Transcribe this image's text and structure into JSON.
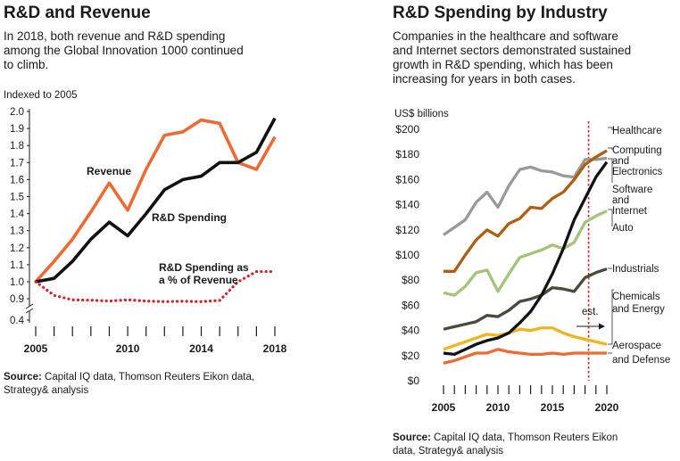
{
  "left": {
    "title": "R&D and Revenue",
    "subtitle_lines": [
      "In 2018, both revenue and R&D spending",
      "among the Global Innovation 1000 continued",
      "to climb."
    ],
    "source_label": "Source:",
    "source_lines": [
      " Capital IQ data, Thomson Reuters Eikon data,",
      "Strategy& analysis"
    ]
  },
  "right": {
    "title": "R&D Spending by Industry",
    "subtitle_lines": [
      "Companies in the healthcare and software",
      "and Internet sectors demonstrated sustained",
      "growth in R&D spending, which has been",
      "increasing for years in both cases."
    ],
    "source_label": "Source:",
    "source_lines": [
      " Capital IQ data, Thomson Reuters Eikon",
      "data, Strategy& analysis"
    ]
  },
  "colors": {
    "revenue": "#ee6a33",
    "rd_spending": "#111111",
    "rd_pct": "#d42027",
    "healthcare": "#111111",
    "computing": "#ae5f12",
    "software": "#999999",
    "auto": "#a4c47a",
    "industrials": "#4a4a3c",
    "chemicals": "#f0b51c",
    "aerospace": "#ee6a33",
    "est_line": "#d42027"
  },
  "chart_data": [
    {
      "type": "line",
      "title": "R&D and Revenue",
      "ylabel": "Indexed to 2005",
      "xlabel": "",
      "x": [
        2005,
        2006,
        2007,
        2008,
        2009,
        2010,
        2011,
        2012,
        2013,
        2014,
        2015,
        2016,
        2017,
        2018
      ],
      "xticks": [
        2005,
        2010,
        2014,
        2018
      ],
      "yticks": [
        0.4,
        0.9,
        1.0,
        1.1,
        1.2,
        1.3,
        1.4,
        1.5,
        1.6,
        1.7,
        1.8,
        1.9,
        2.0
      ],
      "ylim": [
        0.4,
        2.0
      ],
      "axis_break": "between 0.4 and 0.9",
      "series": [
        {
          "name": "Revenue",
          "label": "Revenue",
          "values": [
            1.0,
            1.12,
            1.25,
            1.41,
            1.58,
            1.42,
            1.66,
            1.86,
            1.88,
            1.95,
            1.93,
            1.7,
            1.66,
            1.85
          ]
        },
        {
          "name": "R&D Spending",
          "label": "R&D Spending",
          "values": [
            1.0,
            1.02,
            1.12,
            1.25,
            1.35,
            1.27,
            1.4,
            1.54,
            1.6,
            1.62,
            1.7,
            1.7,
            1.76,
            1.96
          ]
        },
        {
          "name": "R&D Spending as a % of Revenue",
          "label_lines": [
            "R&D Spending as",
            "a % of Revenue"
          ],
          "style": "dotted",
          "values": [
            1.0,
            0.92,
            0.895,
            0.885,
            0.865,
            0.895,
            0.865,
            0.85,
            0.86,
            0.85,
            0.88,
            1.0,
            1.06,
            1.06
          ]
        }
      ]
    },
    {
      "type": "line",
      "title": "R&D Spending by Industry",
      "ylabel": "US$ billions",
      "xlabel": "",
      "x": [
        2005,
        2006,
        2007,
        2008,
        2009,
        2010,
        2011,
        2012,
        2013,
        2014,
        2015,
        2016,
        2017,
        2018,
        2019,
        2020
      ],
      "xticks": [
        2005,
        2010,
        2015,
        2020
      ],
      "yticks": [
        "$0",
        "$20",
        "$40",
        "$60",
        "$80",
        "$100",
        "$120",
        "$140",
        "$160",
        "$180",
        "$200"
      ],
      "ylim": [
        0,
        200
      ],
      "estimate_from": 2018,
      "estimate_label": "est.",
      "series": [
        {
          "name": "Healthcare",
          "label_lines": [
            "Healthcare"
          ],
          "values": [
            22,
            21,
            25,
            29,
            32,
            34,
            38,
            46,
            55,
            68,
            85,
            105,
            128,
            145,
            162,
            174
          ]
        },
        {
          "name": "Computing and Electronics",
          "label_lines": [
            "Computing",
            "and",
            "Electronics"
          ],
          "values": [
            87,
            87,
            100,
            112,
            120,
            115,
            125,
            129,
            138,
            137,
            145,
            150,
            160,
            172,
            178,
            183
          ]
        },
        {
          "name": "Software and Internet",
          "label_lines": [
            "Software",
            "and",
            "Internet"
          ],
          "values": [
            116,
            122,
            128,
            142,
            150,
            138,
            155,
            168,
            170,
            167,
            166,
            163,
            162,
            176,
            176,
            177
          ]
        },
        {
          "name": "Auto",
          "label_lines": [
            "Auto"
          ],
          "values": [
            70,
            68,
            75,
            86,
            88,
            71,
            85,
            98,
            101,
            104,
            108,
            105,
            110,
            126,
            131,
            135
          ]
        },
        {
          "name": "Industrials",
          "label_lines": [
            "Industrials"
          ],
          "values": [
            41,
            43,
            45,
            47,
            52,
            51,
            56,
            63,
            65,
            68,
            74,
            73,
            71,
            82,
            86,
            89
          ]
        },
        {
          "name": "Chemicals and Energy",
          "label_lines": [
            "Chemicals",
            "and Energy"
          ],
          "values": [
            25,
            28,
            31,
            34,
            37,
            36,
            38,
            41,
            40,
            42,
            42,
            38,
            35,
            33,
            31,
            29
          ]
        },
        {
          "name": "Aerospace and Defense",
          "label_lines": [
            "Aerospace",
            "and Defense"
          ],
          "values": [
            14,
            16,
            19,
            22,
            22,
            25,
            23,
            22,
            21,
            21,
            22,
            21,
            22,
            22,
            22,
            22
          ]
        }
      ]
    }
  ]
}
